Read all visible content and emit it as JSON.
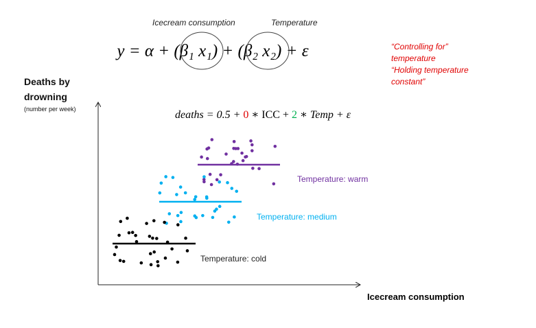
{
  "annotations": {
    "x1": "Icecream consumption",
    "x2": "Temperature"
  },
  "equation": "y = α + (β₁ x₁) + (β₂ x₂) + ε",
  "notes": [
    "“Controlling for”",
    "temperature",
    "“Holding temperature",
    "constant”"
  ],
  "y_axis": {
    "title_lines": [
      "Deaths by",
      "drowning"
    ],
    "unit": "(number per week)"
  },
  "fitted_equation": {
    "parts": [
      "deaths = 0.5 + ",
      "0",
      " ∗ ICC + ",
      "2",
      " ∗ Temp + ε"
    ]
  },
  "groups": [
    {
      "label": "Temperature: warm"
    },
    {
      "label": "Temperature: medium"
    },
    {
      "label": "Temperature: cold"
    }
  ],
  "x_axis": {
    "title": "Icecream consumption"
  }
}
